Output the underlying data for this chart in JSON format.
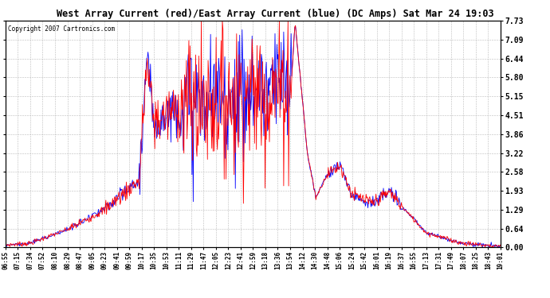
{
  "title": "West Array Current (red)/East Array Current (blue) (DC Amps) Sat Mar 24 19:03",
  "copyright": "Copyright 2007 Cartronics.com",
  "ylim": [
    0.0,
    7.73
  ],
  "yticks": [
    0.0,
    0.64,
    1.29,
    1.93,
    2.58,
    3.22,
    3.86,
    4.51,
    5.15,
    5.8,
    6.44,
    7.09,
    7.73
  ],
  "color_red": "#ff0000",
  "color_blue": "#0000ff",
  "bg_color": "#ffffff",
  "grid_color": "#bbbbbb",
  "x_labels": [
    "06:55",
    "07:15",
    "07:34",
    "07:52",
    "08:10",
    "08:29",
    "08:47",
    "09:05",
    "09:23",
    "09:41",
    "09:59",
    "10:17",
    "10:35",
    "10:53",
    "11:11",
    "11:29",
    "11:47",
    "12:05",
    "12:23",
    "12:41",
    "12:59",
    "13:18",
    "13:36",
    "13:54",
    "14:12",
    "14:30",
    "14:48",
    "15:06",
    "15:24",
    "15:42",
    "16:01",
    "16:19",
    "16:37",
    "16:55",
    "17:13",
    "17:31",
    "17:49",
    "18:07",
    "18:25",
    "18:43",
    "19:01"
  ]
}
